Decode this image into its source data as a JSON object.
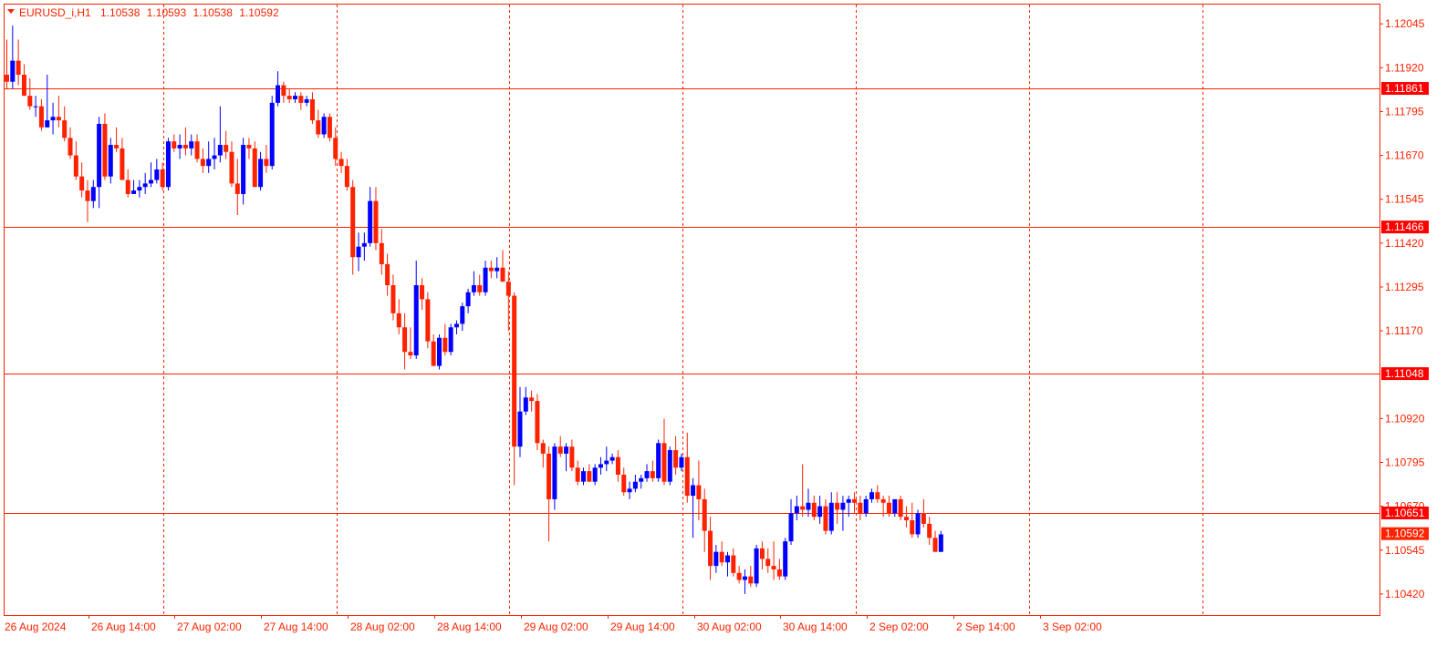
{
  "header": {
    "symbol": "EURUSD_i,H1",
    "open": "1.10538",
    "high": "1.10593",
    "low": "1.10538",
    "close": "1.10592"
  },
  "colors": {
    "frame": "#ff2200",
    "bull": "#0000ff",
    "bear": "#ff2200",
    "grid": "#ff2200",
    "level_line": "#ff2200",
    "level_label_bg": "#ff0000",
    "price_label_bg": "#ff2200",
    "background": "#ffffff"
  },
  "chart_data": {
    "type": "candlestick",
    "symbol": "EURUSD_i",
    "timeframe": "H1",
    "ylim": [
      1.1036,
      1.121
    ],
    "price_ticks": [
      "1.12045",
      "1.11920",
      "1.11795",
      "1.11670",
      "1.11545",
      "1.11420",
      "1.11295",
      "1.11170",
      "1.10920",
      "1.10795",
      "1.10670",
      "1.10545",
      "1.10420"
    ],
    "time_labels": [
      "26 Aug 2024",
      "26 Aug 14:00",
      "27 Aug 02:00",
      "27 Aug 14:00",
      "28 Aug 02:00",
      "28 Aug 14:00",
      "29 Aug 02:00",
      "29 Aug 14:00",
      "30 Aug 02:00",
      "30 Aug 14:00",
      "2 Sep 02:00",
      "2 Sep 14:00",
      "3 Sep 02:00"
    ],
    "grid_vertical": true,
    "grid_horizontal": false,
    "levels": [
      {
        "price": 1.11861,
        "label": "1.11861"
      },
      {
        "price": 1.11466,
        "label": "1.11466"
      },
      {
        "price": 1.11048,
        "label": "1.11048"
      },
      {
        "price": 1.10651,
        "label": "1.10651"
      }
    ],
    "current_price": {
      "price": 1.10592,
      "label": "1.10592"
    },
    "candles": [
      {
        "o": 1.119,
        "h": 1.12,
        "l": 1.1186,
        "c": 1.1188
      },
      {
        "o": 1.1188,
        "h": 1.1204,
        "l": 1.1186,
        "c": 1.1194
      },
      {
        "o": 1.1194,
        "h": 1.12,
        "l": 1.1187,
        "c": 1.119
      },
      {
        "o": 1.119,
        "h": 1.1193,
        "l": 1.1184,
        "c": 1.1184
      },
      {
        "o": 1.1184,
        "h": 1.1189,
        "l": 1.118,
        "c": 1.1181
      },
      {
        "o": 1.1181,
        "h": 1.1184,
        "l": 1.1178,
        "c": 1.1181
      },
      {
        "o": 1.1181,
        "h": 1.1183,
        "l": 1.1174,
        "c": 1.1175
      },
      {
        "o": 1.1175,
        "h": 1.119,
        "l": 1.1175,
        "c": 1.1177
      },
      {
        "o": 1.1177,
        "h": 1.1182,
        "l": 1.1173,
        "c": 1.1178
      },
      {
        "o": 1.1178,
        "h": 1.1184,
        "l": 1.1175,
        "c": 1.1177
      },
      {
        "o": 1.1177,
        "h": 1.1181,
        "l": 1.1171,
        "c": 1.1172
      },
      {
        "o": 1.1172,
        "h": 1.1175,
        "l": 1.1166,
        "c": 1.1167
      },
      {
        "o": 1.1167,
        "h": 1.1171,
        "l": 1.116,
        "c": 1.1161
      },
      {
        "o": 1.1161,
        "h": 1.1165,
        "l": 1.1155,
        "c": 1.1157
      },
      {
        "o": 1.1157,
        "h": 1.116,
        "l": 1.1148,
        "c": 1.1154
      },
      {
        "o": 1.1154,
        "h": 1.116,
        "l": 1.1152,
        "c": 1.1158
      },
      {
        "o": 1.1158,
        "h": 1.1178,
        "l": 1.1152,
        "c": 1.1176
      },
      {
        "o": 1.1176,
        "h": 1.1179,
        "l": 1.116,
        "c": 1.1161
      },
      {
        "o": 1.1161,
        "h": 1.1172,
        "l": 1.1159,
        "c": 1.117
      },
      {
        "o": 1.117,
        "h": 1.1175,
        "l": 1.1168,
        "c": 1.1169
      },
      {
        "o": 1.1169,
        "h": 1.1172,
        "l": 1.116,
        "c": 1.116
      },
      {
        "o": 1.116,
        "h": 1.1163,
        "l": 1.1155,
        "c": 1.1156
      },
      {
        "o": 1.1156,
        "h": 1.116,
        "l": 1.1156,
        "c": 1.1157
      },
      {
        "o": 1.1157,
        "h": 1.116,
        "l": 1.1155,
        "c": 1.1158
      },
      {
        "o": 1.1158,
        "h": 1.1162,
        "l": 1.1156,
        "c": 1.1159
      },
      {
        "o": 1.1159,
        "h": 1.1165,
        "l": 1.1158,
        "c": 1.116
      },
      {
        "o": 1.116,
        "h": 1.1166,
        "l": 1.1159,
        "c": 1.1163
      },
      {
        "o": 1.1163,
        "h": 1.1165,
        "l": 1.1157,
        "c": 1.1158
      },
      {
        "o": 1.1158,
        "h": 1.1172,
        "l": 1.1157,
        "c": 1.1171
      },
      {
        "o": 1.1171,
        "h": 1.1173,
        "l": 1.1168,
        "c": 1.1169
      },
      {
        "o": 1.1169,
        "h": 1.1173,
        "l": 1.1166,
        "c": 1.117
      },
      {
        "o": 1.117,
        "h": 1.1175,
        "l": 1.1167,
        "c": 1.1169
      },
      {
        "o": 1.1169,
        "h": 1.1173,
        "l": 1.1167,
        "c": 1.1171
      },
      {
        "o": 1.1171,
        "h": 1.1173,
        "l": 1.1165,
        "c": 1.1166
      },
      {
        "o": 1.1166,
        "h": 1.1169,
        "l": 1.1162,
        "c": 1.1164
      },
      {
        "o": 1.1164,
        "h": 1.1171,
        "l": 1.1162,
        "c": 1.1166
      },
      {
        "o": 1.1166,
        "h": 1.1172,
        "l": 1.1163,
        "c": 1.1167
      },
      {
        "o": 1.1167,
        "h": 1.1181,
        "l": 1.1165,
        "c": 1.117
      },
      {
        "o": 1.117,
        "h": 1.1174,
        "l": 1.1166,
        "c": 1.1168
      },
      {
        "o": 1.1168,
        "h": 1.1171,
        "l": 1.1158,
        "c": 1.1159
      },
      {
        "o": 1.1159,
        "h": 1.1166,
        "l": 1.115,
        "c": 1.1156
      },
      {
        "o": 1.1156,
        "h": 1.1172,
        "l": 1.1153,
        "c": 1.117
      },
      {
        "o": 1.117,
        "h": 1.1172,
        "l": 1.1166,
        "c": 1.1169
      },
      {
        "o": 1.1169,
        "h": 1.1171,
        "l": 1.1158,
        "c": 1.1158
      },
      {
        "o": 1.1158,
        "h": 1.1168,
        "l": 1.1157,
        "c": 1.1166
      },
      {
        "o": 1.1166,
        "h": 1.117,
        "l": 1.1162,
        "c": 1.1164
      },
      {
        "o": 1.1164,
        "h": 1.1184,
        "l": 1.1163,
        "c": 1.1182
      },
      {
        "o": 1.1182,
        "h": 1.1191,
        "l": 1.1181,
        "c": 1.1187
      },
      {
        "o": 1.1187,
        "h": 1.1188,
        "l": 1.1182,
        "c": 1.1184
      },
      {
        "o": 1.1184,
        "h": 1.1186,
        "l": 1.1182,
        "c": 1.1183
      },
      {
        "o": 1.1183,
        "h": 1.1185,
        "l": 1.1182,
        "c": 1.1184
      },
      {
        "o": 1.1184,
        "h": 1.1185,
        "l": 1.118,
        "c": 1.1182
      },
      {
        "o": 1.1182,
        "h": 1.1184,
        "l": 1.1181,
        "c": 1.1183
      },
      {
        "o": 1.1183,
        "h": 1.1185,
        "l": 1.1176,
        "c": 1.1177
      },
      {
        "o": 1.1177,
        "h": 1.118,
        "l": 1.1172,
        "c": 1.1173
      },
      {
        "o": 1.1173,
        "h": 1.1179,
        "l": 1.1172,
        "c": 1.1178
      },
      {
        "o": 1.1178,
        "h": 1.1179,
        "l": 1.1171,
        "c": 1.1172
      },
      {
        "o": 1.1172,
        "h": 1.1175,
        "l": 1.1164,
        "c": 1.1166
      },
      {
        "o": 1.1166,
        "h": 1.1168,
        "l": 1.1162,
        "c": 1.1164
      },
      {
        "o": 1.1164,
        "h": 1.1166,
        "l": 1.1157,
        "c": 1.1158
      },
      {
        "o": 1.1158,
        "h": 1.116,
        "l": 1.1133,
        "c": 1.1138
      },
      {
        "o": 1.1138,
        "h": 1.1145,
        "l": 1.1134,
        "c": 1.1141
      },
      {
        "o": 1.1141,
        "h": 1.1145,
        "l": 1.1137,
        "c": 1.1142
      },
      {
        "o": 1.1142,
        "h": 1.1158,
        "l": 1.1141,
        "c": 1.1154
      },
      {
        "o": 1.1154,
        "h": 1.1158,
        "l": 1.114,
        "c": 1.1142
      },
      {
        "o": 1.1142,
        "h": 1.1146,
        "l": 1.1133,
        "c": 1.1136
      },
      {
        "o": 1.1136,
        "h": 1.1139,
        "l": 1.1127,
        "c": 1.113
      },
      {
        "o": 1.113,
        "h": 1.1133,
        "l": 1.112,
        "c": 1.1122
      },
      {
        "o": 1.1122,
        "h": 1.1126,
        "l": 1.1116,
        "c": 1.1118
      },
      {
        "o": 1.1118,
        "h": 1.1122,
        "l": 1.1106,
        "c": 1.1111
      },
      {
        "o": 1.1111,
        "h": 1.1118,
        "l": 1.1109,
        "c": 1.111
      },
      {
        "o": 1.111,
        "h": 1.1137,
        "l": 1.1109,
        "c": 1.113
      },
      {
        "o": 1.113,
        "h": 1.1132,
        "l": 1.1123,
        "c": 1.1126
      },
      {
        "o": 1.1126,
        "h": 1.1128,
        "l": 1.1112,
        "c": 1.1114
      },
      {
        "o": 1.1114,
        "h": 1.1116,
        "l": 1.1107,
        "c": 1.1107
      },
      {
        "o": 1.1107,
        "h": 1.1116,
        "l": 1.1106,
        "c": 1.1115
      },
      {
        "o": 1.1115,
        "h": 1.1119,
        "l": 1.111,
        "c": 1.1111
      },
      {
        "o": 1.1111,
        "h": 1.1119,
        "l": 1.111,
        "c": 1.1118
      },
      {
        "o": 1.1118,
        "h": 1.112,
        "l": 1.1116,
        "c": 1.1119
      },
      {
        "o": 1.1119,
        "h": 1.1125,
        "l": 1.1117,
        "c": 1.1124
      },
      {
        "o": 1.1124,
        "h": 1.1129,
        "l": 1.1122,
        "c": 1.1128
      },
      {
        "o": 1.1128,
        "h": 1.1134,
        "l": 1.1127,
        "c": 1.113
      },
      {
        "o": 1.113,
        "h": 1.1133,
        "l": 1.1127,
        "c": 1.1128
      },
      {
        "o": 1.1128,
        "h": 1.1137,
        "l": 1.1127,
        "c": 1.1135
      },
      {
        "o": 1.1135,
        "h": 1.1137,
        "l": 1.1132,
        "c": 1.1134
      },
      {
        "o": 1.1134,
        "h": 1.1138,
        "l": 1.1132,
        "c": 1.1135
      },
      {
        "o": 1.1135,
        "h": 1.114,
        "l": 1.1131,
        "c": 1.1131
      },
      {
        "o": 1.1131,
        "h": 1.1134,
        "l": 1.1117,
        "c": 1.1127
      },
      {
        "o": 1.1127,
        "h": 1.1128,
        "l": 1.1073,
        "c": 1.1084
      },
      {
        "o": 1.1084,
        "h": 1.1101,
        "l": 1.1081,
        "c": 1.1094
      },
      {
        "o": 1.1094,
        "h": 1.1101,
        "l": 1.1093,
        "c": 1.1098
      },
      {
        "o": 1.1098,
        "h": 1.11,
        "l": 1.1094,
        "c": 1.1097
      },
      {
        "o": 1.1097,
        "h": 1.1099,
        "l": 1.1083,
        "c": 1.1085
      },
      {
        "o": 1.1085,
        "h": 1.1086,
        "l": 1.1078,
        "c": 1.1082
      },
      {
        "o": 1.1082,
        "h": 1.1084,
        "l": 1.1057,
        "c": 1.1069
      },
      {
        "o": 1.1069,
        "h": 1.1085,
        "l": 1.1066,
        "c": 1.1084
      },
      {
        "o": 1.1084,
        "h": 1.1087,
        "l": 1.1081,
        "c": 1.1082
      },
      {
        "o": 1.1082,
        "h": 1.1085,
        "l": 1.1077,
        "c": 1.1084
      },
      {
        "o": 1.1084,
        "h": 1.1086,
        "l": 1.1077,
        "c": 1.1078
      },
      {
        "o": 1.1078,
        "h": 1.108,
        "l": 1.1073,
        "c": 1.1074
      },
      {
        "o": 1.1074,
        "h": 1.1078,
        "l": 1.1073,
        "c": 1.1077
      },
      {
        "o": 1.1077,
        "h": 1.1079,
        "l": 1.1074,
        "c": 1.1074
      },
      {
        "o": 1.1074,
        "h": 1.1079,
        "l": 1.1073,
        "c": 1.1078
      },
      {
        "o": 1.1078,
        "h": 1.1081,
        "l": 1.1076,
        "c": 1.1079
      },
      {
        "o": 1.1079,
        "h": 1.1084,
        "l": 1.1077,
        "c": 1.108
      },
      {
        "o": 1.108,
        "h": 1.1082,
        "l": 1.1079,
        "c": 1.1081
      },
      {
        "o": 1.1081,
        "h": 1.1083,
        "l": 1.1074,
        "c": 1.1076
      },
      {
        "o": 1.1076,
        "h": 1.1078,
        "l": 1.107,
        "c": 1.1071
      },
      {
        "o": 1.1071,
        "h": 1.1074,
        "l": 1.1069,
        "c": 1.1072
      },
      {
        "o": 1.1072,
        "h": 1.1076,
        "l": 1.1071,
        "c": 1.1074
      },
      {
        "o": 1.1074,
        "h": 1.1076,
        "l": 1.1072,
        "c": 1.1075
      },
      {
        "o": 1.1075,
        "h": 1.1079,
        "l": 1.1074,
        "c": 1.1077
      },
      {
        "o": 1.1077,
        "h": 1.108,
        "l": 1.1074,
        "c": 1.1075
      },
      {
        "o": 1.1075,
        "h": 1.1086,
        "l": 1.1074,
        "c": 1.1085
      },
      {
        "o": 1.1085,
        "h": 1.1092,
        "l": 1.1073,
        "c": 1.1074
      },
      {
        "o": 1.1074,
        "h": 1.1084,
        "l": 1.1073,
        "c": 1.1083
      },
      {
        "o": 1.1083,
        "h": 1.1087,
        "l": 1.1076,
        "c": 1.1078
      },
      {
        "o": 1.1078,
        "h": 1.1082,
        "l": 1.1077,
        "c": 1.1081
      },
      {
        "o": 1.1081,
        "h": 1.1088,
        "l": 1.1068,
        "c": 1.107
      },
      {
        "o": 1.107,
        "h": 1.1075,
        "l": 1.1058,
        "c": 1.1073
      },
      {
        "o": 1.1073,
        "h": 1.108,
        "l": 1.1063,
        "c": 1.1069
      },
      {
        "o": 1.1069,
        "h": 1.1072,
        "l": 1.1054,
        "c": 1.106
      },
      {
        "o": 1.106,
        "h": 1.1064,
        "l": 1.1046,
        "c": 1.105
      },
      {
        "o": 1.105,
        "h": 1.1056,
        "l": 1.1048,
        "c": 1.1054
      },
      {
        "o": 1.1054,
        "h": 1.1057,
        "l": 1.105,
        "c": 1.1051
      },
      {
        "o": 1.1051,
        "h": 1.1054,
        "l": 1.1047,
        "c": 1.1053
      },
      {
        "o": 1.1053,
        "h": 1.1055,
        "l": 1.1047,
        "c": 1.1048
      },
      {
        "o": 1.1048,
        "h": 1.105,
        "l": 1.1045,
        "c": 1.1046
      },
      {
        "o": 1.1046,
        "h": 1.1049,
        "l": 1.1042,
        "c": 1.1047
      },
      {
        "o": 1.1047,
        "h": 1.105,
        "l": 1.1044,
        "c": 1.1045
      },
      {
        "o": 1.1045,
        "h": 1.1056,
        "l": 1.1044,
        "c": 1.1055
      },
      {
        "o": 1.1055,
        "h": 1.1057,
        "l": 1.1049,
        "c": 1.1052
      },
      {
        "o": 1.1052,
        "h": 1.1055,
        "l": 1.1048,
        "c": 1.105
      },
      {
        "o": 1.105,
        "h": 1.1057,
        "l": 1.1046,
        "c": 1.1049
      },
      {
        "o": 1.1049,
        "h": 1.1052,
        "l": 1.1046,
        "c": 1.1047
      },
      {
        "o": 1.1047,
        "h": 1.1058,
        "l": 1.1046,
        "c": 1.1057
      },
      {
        "o": 1.1057,
        "h": 1.1069,
        "l": 1.1056,
        "c": 1.1065
      },
      {
        "o": 1.1065,
        "h": 1.107,
        "l": 1.1063,
        "c": 1.1067
      },
      {
        "o": 1.1067,
        "h": 1.1079,
        "l": 1.1064,
        "c": 1.1066
      },
      {
        "o": 1.1066,
        "h": 1.1072,
        "l": 1.1064,
        "c": 1.1068
      },
      {
        "o": 1.1068,
        "h": 1.107,
        "l": 1.1063,
        "c": 1.1064
      },
      {
        "o": 1.1064,
        "h": 1.107,
        "l": 1.1062,
        "c": 1.1067
      },
      {
        "o": 1.1067,
        "h": 1.1069,
        "l": 1.1059,
        "c": 1.106
      },
      {
        "o": 1.106,
        "h": 1.1071,
        "l": 1.1059,
        "c": 1.1068
      },
      {
        "o": 1.1068,
        "h": 1.1071,
        "l": 1.1062,
        "c": 1.1066
      },
      {
        "o": 1.1066,
        "h": 1.107,
        "l": 1.106,
        "c": 1.1068
      },
      {
        "o": 1.1068,
        "h": 1.107,
        "l": 1.1064,
        "c": 1.1069
      },
      {
        "o": 1.1069,
        "h": 1.1071,
        "l": 1.1065,
        "c": 1.1068
      },
      {
        "o": 1.1068,
        "h": 1.107,
        "l": 1.1063,
        "c": 1.1065
      },
      {
        "o": 1.1065,
        "h": 1.107,
        "l": 1.1064,
        "c": 1.1069
      },
      {
        "o": 1.1069,
        "h": 1.1072,
        "l": 1.1068,
        "c": 1.1071
      },
      {
        "o": 1.1071,
        "h": 1.1073,
        "l": 1.1068,
        "c": 1.1069
      },
      {
        "o": 1.1069,
        "h": 1.107,
        "l": 1.1064,
        "c": 1.1068
      },
      {
        "o": 1.1068,
        "h": 1.107,
        "l": 1.1064,
        "c": 1.1065
      },
      {
        "o": 1.1065,
        "h": 1.1069,
        "l": 1.1064,
        "c": 1.1069
      },
      {
        "o": 1.1069,
        "h": 1.107,
        "l": 1.1063,
        "c": 1.1064
      },
      {
        "o": 1.1064,
        "h": 1.1067,
        "l": 1.1061,
        "c": 1.1063
      },
      {
        "o": 1.1063,
        "h": 1.1068,
        "l": 1.1058,
        "c": 1.1059
      },
      {
        "o": 1.1059,
        "h": 1.1066,
        "l": 1.1058,
        "c": 1.1065
      },
      {
        "o": 1.1065,
        "h": 1.1069,
        "l": 1.1061,
        "c": 1.1062
      },
      {
        "o": 1.1062,
        "h": 1.1064,
        "l": 1.1056,
        "c": 1.1058
      },
      {
        "o": 1.1058,
        "h": 1.106,
        "l": 1.1054,
        "c": 1.1054
      },
      {
        "o": 1.1054,
        "h": 1.106,
        "l": 1.1054,
        "c": 1.1059
      }
    ]
  }
}
